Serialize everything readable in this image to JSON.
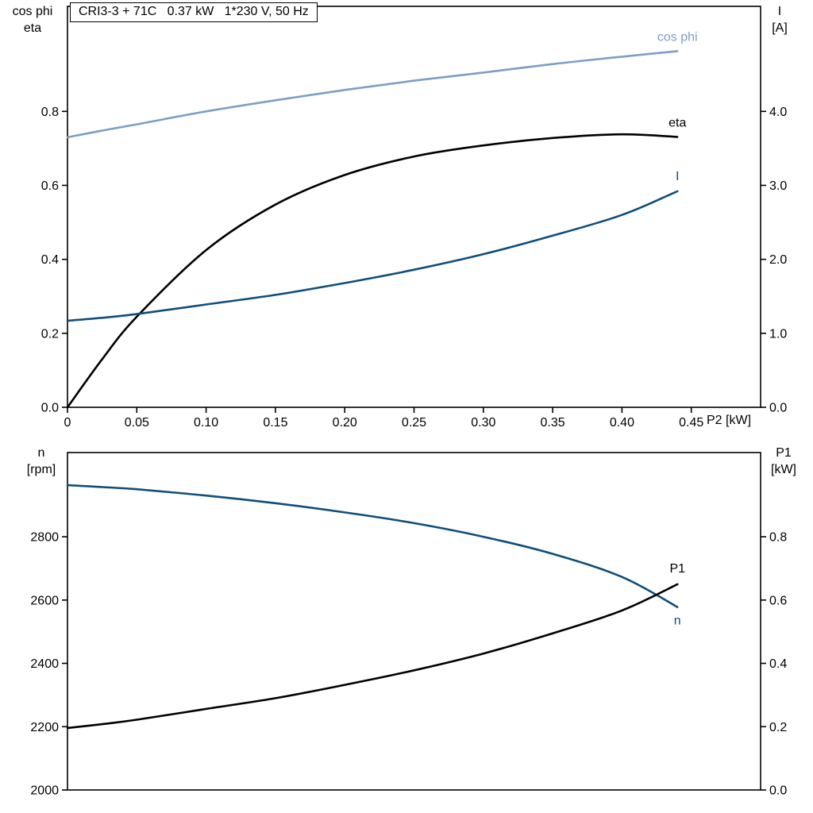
{
  "title_box": "CRI3-3 + 71C   0.37 kW   1*230 V, 50 Hz",
  "colors": {
    "frame": "#000000",
    "cos_phi_curve": "#7d9ec4",
    "eta_curve": "#000000",
    "current_curve": "#0f4e7c",
    "speed_curve": "#0f4e7c",
    "p1_curve": "#000000",
    "background": "#ffffff"
  },
  "axis_corner_labels": {
    "top_left": [
      "cos phi",
      "eta"
    ],
    "top_right": [
      "I",
      "[A]"
    ],
    "bottom_left": [
      "n",
      "[rpm]"
    ],
    "bottom_right": [
      "P1",
      "[kW]"
    ],
    "x_axis": "P2 [kW]"
  },
  "chart_data": [
    {
      "type": "line",
      "title": "CRI3-3 + 71C   0.37 kW   1*230 V, 50 Hz",
      "xlabel": "P2 [kW]",
      "grid": false,
      "x": [
        0,
        0.025,
        0.05,
        0.1,
        0.15,
        0.2,
        0.25,
        0.3,
        0.35,
        0.4,
        0.44
      ],
      "series": [
        {
          "name": "cos phi",
          "axis": "left",
          "color": "#7d9ec4",
          "values": [
            0.73,
            0.748,
            0.765,
            0.8,
            0.83,
            0.858,
            0.883,
            0.905,
            0.928,
            0.948,
            0.963
          ],
          "label_dy": -13
        },
        {
          "name": "eta",
          "axis": "left",
          "color": "#000000",
          "values": [
            0.0,
            0.13,
            0.245,
            0.425,
            0.548,
            0.628,
            0.678,
            0.708,
            0.728,
            0.738,
            0.731
          ],
          "label_dy": -13
        },
        {
          "name": "I",
          "axis": "right",
          "color": "#0f4e7c",
          "values": [
            1.17,
            1.21,
            1.26,
            1.39,
            1.52,
            1.68,
            1.86,
            2.07,
            2.32,
            2.6,
            2.92
          ],
          "label_dy": -14
        }
      ],
      "x_axis": {
        "range": [
          0,
          0.5
        ],
        "ticks": [
          0,
          0.05,
          0.1,
          0.15,
          0.2,
          0.25,
          0.3,
          0.35,
          0.4,
          0.45
        ],
        "tick_labels": [
          "0",
          "0.05",
          "0.10",
          "0.15",
          "0.20",
          "0.25",
          "0.30",
          "0.35",
          "0.40",
          "0.45"
        ]
      },
      "left_axis": {
        "label": "cos phi / eta",
        "range": [
          0,
          1.084
        ],
        "ticks": [
          0.0,
          0.2,
          0.4,
          0.6,
          0.8
        ],
        "tick_labels": [
          "0.0",
          "0.2",
          "0.4",
          "0.6",
          "0.8"
        ]
      },
      "right_axis": {
        "label": "I [A]",
        "range": [
          0,
          5.42
        ],
        "ticks": [
          0,
          1,
          2,
          3,
          4
        ],
        "tick_labels": [
          "0.0",
          "1.0",
          "2.0",
          "3.0",
          "4.0"
        ]
      }
    },
    {
      "type": "line",
      "title": "",
      "xlabel": "P2 [kW]",
      "grid": false,
      "x": [
        0,
        0.025,
        0.05,
        0.1,
        0.15,
        0.2,
        0.25,
        0.3,
        0.35,
        0.4,
        0.44
      ],
      "series": [
        {
          "name": "n",
          "axis": "left",
          "color": "#0f4e7c",
          "values": [
            2963,
            2957,
            2950,
            2930,
            2906,
            2877,
            2843,
            2800,
            2746,
            2673,
            2578
          ],
          "label_dy": 22
        },
        {
          "name": "P1",
          "axis": "right",
          "color": "#000000",
          "values": [
            0.196,
            0.208,
            0.222,
            0.256,
            0.29,
            0.332,
            0.378,
            0.431,
            0.495,
            0.567,
            0.65
          ],
          "label_dy": -15
        }
      ],
      "x_axis": {
        "range": [
          0,
          0.5
        ],
        "ticks": [],
        "tick_labels": []
      },
      "left_axis": {
        "label": "n [rpm]",
        "range": [
          2000,
          3066
        ],
        "ticks": [
          2000,
          2200,
          2400,
          2600,
          2800
        ],
        "tick_labels": [
          "2000",
          "2200",
          "2400",
          "2600",
          "2800"
        ]
      },
      "right_axis": {
        "label": "P1 [kW]",
        "range": [
          0,
          1.066
        ],
        "ticks": [
          0.0,
          0.2,
          0.4,
          0.6,
          0.8
        ],
        "tick_labels": [
          "0.0",
          "0.2",
          "0.4",
          "0.6",
          "0.8"
        ]
      }
    }
  ]
}
